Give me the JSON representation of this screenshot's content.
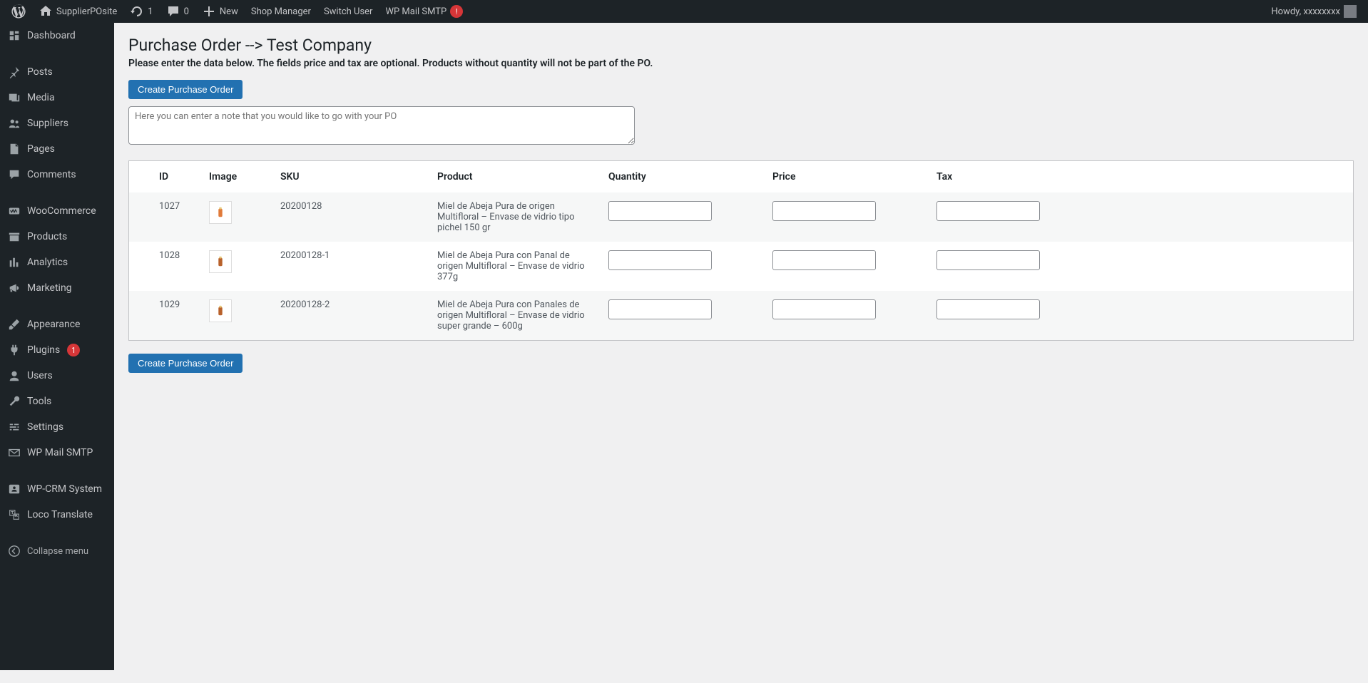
{
  "adminbar": {
    "site_name": "SupplierPOsite",
    "updates_count": "1",
    "comments_count": "0",
    "new_label": "New",
    "shop_manager": "Shop Manager",
    "switch_user": "Switch User",
    "wp_mail_smtp": "WP Mail SMTP",
    "wp_mail_smtp_badge": "!",
    "howdy_prefix": "Howdy, ",
    "username": "xxxxxxxx"
  },
  "sidebar": {
    "items": [
      {
        "key": "dashboard",
        "label": "Dashboard",
        "icon": "dashboard"
      },
      {
        "key": "posts",
        "label": "Posts",
        "icon": "pin"
      },
      {
        "key": "media",
        "label": "Media",
        "icon": "media"
      },
      {
        "key": "suppliers",
        "label": "Suppliers",
        "icon": "groups"
      },
      {
        "key": "pages",
        "label": "Pages",
        "icon": "page"
      },
      {
        "key": "comments",
        "label": "Comments",
        "icon": "comment"
      },
      {
        "key": "woocommerce",
        "label": "WooCommerce",
        "icon": "woo"
      },
      {
        "key": "products",
        "label": "Products",
        "icon": "archive"
      },
      {
        "key": "analytics",
        "label": "Analytics",
        "icon": "chart"
      },
      {
        "key": "marketing",
        "label": "Marketing",
        "icon": "megaphone"
      },
      {
        "key": "appearance",
        "label": "Appearance",
        "icon": "brush"
      },
      {
        "key": "plugins",
        "label": "Plugins",
        "icon": "plugin",
        "badge": "1"
      },
      {
        "key": "users",
        "label": "Users",
        "icon": "user"
      },
      {
        "key": "tools",
        "label": "Tools",
        "icon": "wrench"
      },
      {
        "key": "settings",
        "label": "Settings",
        "icon": "sliders"
      },
      {
        "key": "wpmailsmtp",
        "label": "WP Mail SMTP",
        "icon": "mail"
      },
      {
        "key": "wpcrm",
        "label": "WP-CRM System",
        "icon": "crm"
      },
      {
        "key": "loco",
        "label": "Loco Translate",
        "icon": "translate"
      }
    ],
    "collapse_label": "Collapse menu"
  },
  "page": {
    "title": "Purchase Order --> Test Company",
    "subtitle": "Please enter the data below. The fields price and tax are optional. Products without quantity will not be part of the PO.",
    "create_button": "Create Purchase Order",
    "note_placeholder": "Here you can enter a note that you would like to go with your PO"
  },
  "table": {
    "columns": [
      "ID",
      "Image",
      "SKU",
      "Product",
      "Quantity",
      "Price",
      "Tax"
    ],
    "rows": [
      {
        "id": "1027",
        "sku": "20200128",
        "product": "Miel de Abeja Pura de origen Multifloral – Envase de vidrio tipo pichel 150 gr",
        "thumb_color": "#e07a3a"
      },
      {
        "id": "1028",
        "sku": "20200128-1",
        "product": "Miel de Abeja Pura con Panal de origen Multifloral – Envase de vidrio 377g",
        "thumb_color": "#b8612b"
      },
      {
        "id": "1029",
        "sku": "20200128-2",
        "product": "Miel de Abeja Pura con Panales de origen Multifloral – Envase de vidrio super grande – 600g",
        "thumb_color": "#b8612b"
      }
    ]
  }
}
